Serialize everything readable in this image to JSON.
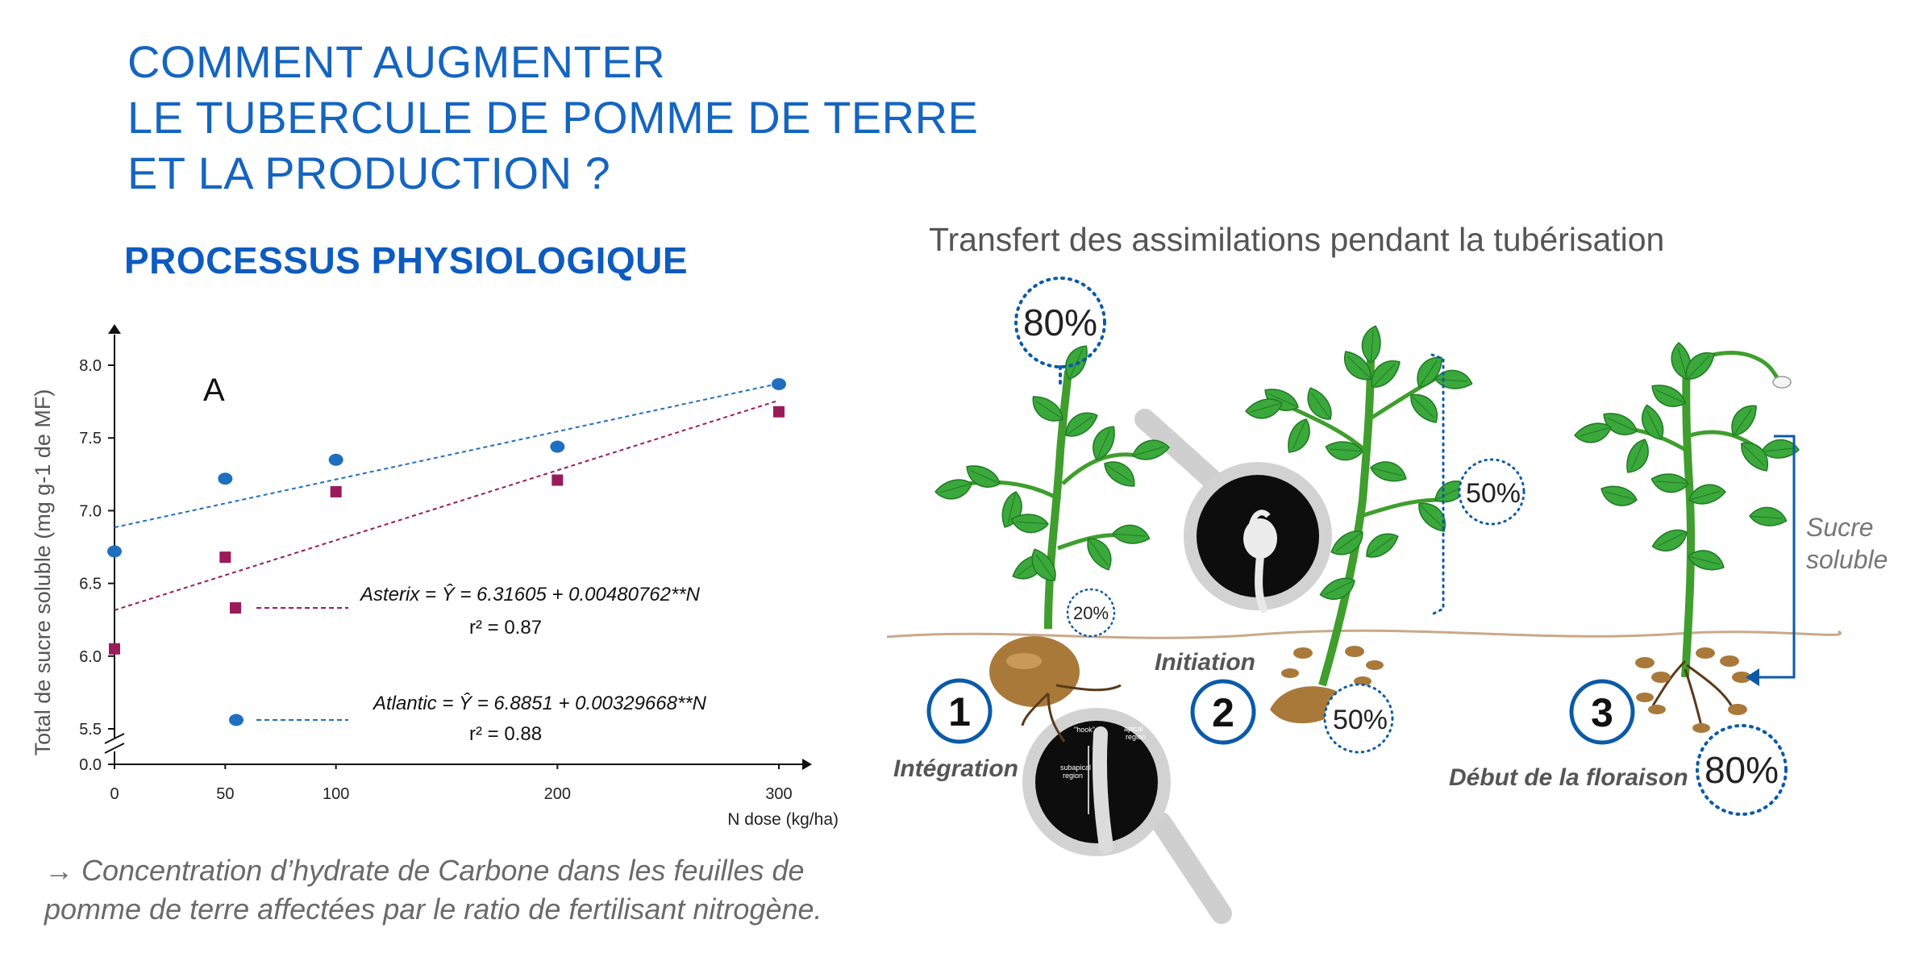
{
  "title_lines": [
    "COMMENT AUGMENTER",
    "LE TUBERCULE DE POMME DE TERRE",
    "ET LA PRODUCTION ?"
  ],
  "subtitle": "PROCESSUS PHYSIOLOGIQUE",
  "caption_lines": [
    "→ Concentration d’hydrate de Carbone dans les feuilles de",
    "pomme de terre affectées par le ratio de fertilisant nitrogène."
  ],
  "chart_data": {
    "type": "scatter",
    "panel_label": "A",
    "ylabel": "Total de sucre soluble (mg g-1 de MF)",
    "xlabel": "N dose (kg/ha)",
    "xticks": [
      0,
      50,
      100,
      200,
      300
    ],
    "yticks": [
      "0.0",
      "5.5",
      "6.0",
      "6.5",
      "7.0",
      "7.5",
      "8.0"
    ],
    "xlim": [
      0,
      300
    ],
    "ylim": [
      5.5,
      8.0
    ],
    "axis_break": true,
    "grid": false,
    "series": [
      {
        "name": "Atlantic",
        "color": "#1f6fbf",
        "marker": "circle",
        "x": [
          0,
          50,
          100,
          200,
          300
        ],
        "y": [
          6.72,
          7.22,
          7.35,
          7.44,
          7.87
        ],
        "fit": {
          "intercept": 6.8851,
          "slope": 0.00329668
        },
        "equation": "Atlantic = Ŷ = 6.8851 + 0.00329668**N",
        "r2": "r² = 0.88"
      },
      {
        "name": "Asterix",
        "color": "#9b1b5a",
        "marker": "square",
        "x": [
          0,
          50,
          100,
          200,
          300
        ],
        "y": [
          6.05,
          6.68,
          7.13,
          7.21,
          7.68
        ],
        "fit": {
          "intercept": 6.31605,
          "slope": 0.00480762
        },
        "equation": "Asterix = Ŷ = 6.31605 + 0.00480762**N",
        "r2": "r² = 0.87"
      }
    ]
  },
  "illustration": {
    "title": "Transfert des assimilations pendant la tubérisation",
    "stages": [
      {
        "number": "1",
        "label": "Intégration",
        "pct_top": "80%",
        "pct_root": "20%"
      },
      {
        "number": "2",
        "label": "Initiation",
        "pct_top": "50%",
        "pct_root": "50%"
      },
      {
        "number": "3",
        "label": "Début de la floraison",
        "pct_root": "80%",
        "side_label_1": "Sucre",
        "side_label_2": "soluble"
      }
    ],
    "micro_labels": {
      "hook": "\"hook\"",
      "apical_1": "apical",
      "apical_2": "region",
      "subapical_1": "subapical",
      "subapical_2": "region"
    },
    "colors": {
      "leaf": "#3aa83a",
      "leaf_dark": "#1f7a24",
      "stem": "#3f9e2d",
      "tuber": "#a9793a",
      "soil_line": "#c8a98a",
      "accent": "#0b5aa8",
      "grey": "#cfcfcf"
    }
  }
}
